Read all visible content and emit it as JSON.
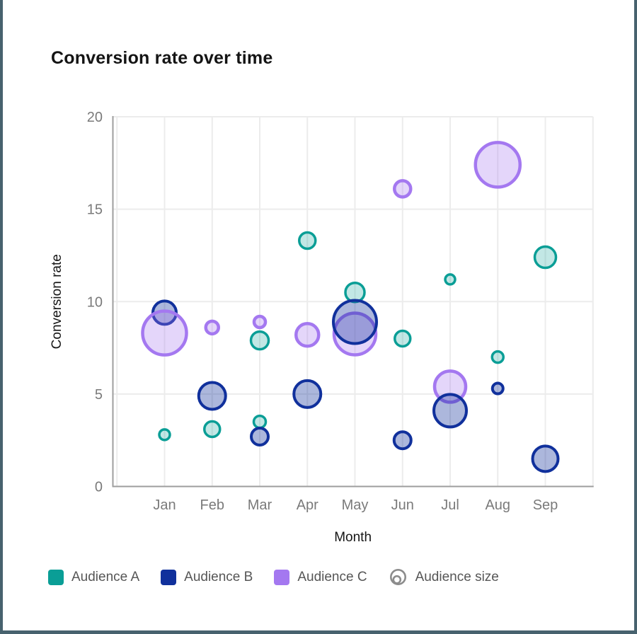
{
  "frame": {
    "border_color": "#47626e"
  },
  "title": "Conversion rate over time",
  "axes": {
    "x_label": "Month",
    "y_label": "Conversion rate"
  },
  "legend": {
    "items": [
      {
        "label": "Audience A",
        "color": "#0a9e96"
      },
      {
        "label": "Audience B",
        "color": "#10309c"
      },
      {
        "label": "Audience C",
        "color": "#a478f0"
      }
    ],
    "size_item_label": "Audience size"
  },
  "chart_data": {
    "type": "scatter",
    "title": "Conversion rate over time",
    "xlabel": "Month",
    "ylabel": "Conversion rate",
    "categories": [
      "Jan",
      "Feb",
      "Mar",
      "Apr",
      "May",
      "Jun",
      "Jul",
      "Aug",
      "Sep"
    ],
    "y_ticks": [
      0,
      5,
      10,
      15,
      20
    ],
    "ylim": [
      0,
      20
    ],
    "grid": true,
    "legend_position": "bottom",
    "size_encoding": "bubble radius = Audience size",
    "series": [
      {
        "name": "Audience A",
        "color": "#0a9e96",
        "fill_opacity": 0.25,
        "stroke_width": 3.5,
        "points": [
          {
            "x": "Jan",
            "y": 2.8,
            "r": 7.5
          },
          {
            "x": "Feb",
            "y": 3.1,
            "r": 11
          },
          {
            "x": "Mar",
            "y": 7.9,
            "r": 12.5
          },
          {
            "x": "Mar",
            "y": 3.5,
            "r": 8.5
          },
          {
            "x": "Apr",
            "y": 13.3,
            "r": 11.5
          },
          {
            "x": "May",
            "y": 10.5,
            "r": 13.5
          },
          {
            "x": "Jun",
            "y": 8.0,
            "r": 11
          },
          {
            "x": "Jul",
            "y": 11.2,
            "r": 7
          },
          {
            "x": "Aug",
            "y": 7.0,
            "r": 8
          },
          {
            "x": "Sep",
            "y": 12.4,
            "r": 15
          }
        ]
      },
      {
        "name": "Audience B",
        "color": "#10309c",
        "fill_opacity": 0.35,
        "stroke_width": 4,
        "points": [
          {
            "x": "Jan",
            "y": 9.4,
            "r": 16.5
          },
          {
            "x": "Feb",
            "y": 4.9,
            "r": 19
          },
          {
            "x": "Mar",
            "y": 2.7,
            "r": 12
          },
          {
            "x": "Apr",
            "y": 5.0,
            "r": 19
          },
          {
            "x": "May",
            "y": 8.9,
            "r": 30.5
          },
          {
            "x": "Jun",
            "y": 2.5,
            "r": 12
          },
          {
            "x": "Jul",
            "y": 4.1,
            "r": 23
          },
          {
            "x": "Aug",
            "y": 5.3,
            "r": 7.5
          },
          {
            "x": "Sep",
            "y": 1.5,
            "r": 18
          }
        ]
      },
      {
        "name": "Audience C",
        "color": "#a478f0",
        "fill_opacity": 0.3,
        "stroke_width": 4.5,
        "points": [
          {
            "x": "Jan",
            "y": 8.3,
            "r": 31
          },
          {
            "x": "Feb",
            "y": 8.6,
            "r": 9
          },
          {
            "x": "Mar",
            "y": 8.9,
            "r": 8
          },
          {
            "x": "Apr",
            "y": 8.2,
            "r": 16
          },
          {
            "x": "May",
            "y": 8.25,
            "r": 29.5
          },
          {
            "x": "Jun",
            "y": 16.1,
            "r": 11.5
          },
          {
            "x": "Jul",
            "y": 5.4,
            "r": 22
          },
          {
            "x": "Aug",
            "y": 17.4,
            "r": 31.5
          }
        ]
      }
    ]
  }
}
